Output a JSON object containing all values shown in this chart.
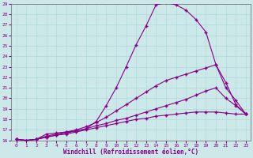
{
  "xlabel": "Windchill (Refroidissement éolien,°C)",
  "background_color": "#cce8e8",
  "line_color": "#880088",
  "xlim": [
    -0.5,
    23.5
  ],
  "ylim": [
    16,
    29
  ],
  "yticks": [
    16,
    17,
    18,
    19,
    20,
    21,
    22,
    23,
    24,
    25,
    26,
    27,
    28,
    29
  ],
  "xticks": [
    0,
    1,
    2,
    3,
    4,
    5,
    6,
    7,
    8,
    9,
    10,
    11,
    12,
    13,
    14,
    15,
    16,
    17,
    18,
    19,
    20,
    21,
    22,
    23
  ],
  "curves": [
    {
      "x": [
        0,
        1,
        2,
        3,
        4,
        5,
        6,
        7,
        8,
        9,
        10,
        11,
        12,
        13,
        14,
        15,
        16,
        17,
        18,
        19,
        20,
        21,
        22,
        23
      ],
      "y": [
        16.1,
        16.0,
        16.1,
        16.6,
        16.7,
        16.8,
        16.9,
        17.1,
        17.8,
        19.3,
        21.0,
        23.0,
        25.1,
        26.9,
        28.9,
        29.1,
        28.9,
        28.4,
        27.5,
        26.3,
        23.2,
        21.5,
        19.4,
        18.5
      ]
    },
    {
      "x": [
        0,
        1,
        2,
        3,
        4,
        5,
        6,
        7,
        8,
        9,
        10,
        11,
        12,
        13,
        14,
        15,
        16,
        17,
        18,
        19,
        20,
        21,
        22,
        23
      ],
      "y": [
        16.1,
        16.0,
        16.1,
        16.4,
        16.6,
        16.8,
        17.0,
        17.3,
        17.7,
        18.2,
        18.8,
        19.4,
        20.0,
        20.6,
        21.2,
        21.7,
        22.0,
        22.3,
        22.6,
        22.9,
        23.2,
        21.0,
        19.8,
        18.5
      ]
    },
    {
      "x": [
        0,
        1,
        2,
        3,
        4,
        5,
        6,
        7,
        8,
        9,
        10,
        11,
        12,
        13,
        14,
        15,
        16,
        17,
        18,
        19,
        20,
        21,
        22,
        23
      ],
      "y": [
        16.1,
        16.0,
        16.1,
        16.3,
        16.5,
        16.7,
        16.9,
        17.1,
        17.4,
        17.6,
        17.9,
        18.1,
        18.4,
        18.7,
        19.0,
        19.3,
        19.6,
        19.9,
        20.3,
        20.7,
        21.0,
        20.0,
        19.3,
        18.5
      ]
    },
    {
      "x": [
        0,
        1,
        2,
        3,
        4,
        5,
        6,
        7,
        8,
        9,
        10,
        11,
        12,
        13,
        14,
        15,
        16,
        17,
        18,
        19,
        20,
        21,
        22,
        23
      ],
      "y": [
        16.1,
        16.0,
        16.1,
        16.3,
        16.5,
        16.6,
        16.8,
        17.0,
        17.2,
        17.4,
        17.6,
        17.8,
        18.0,
        18.1,
        18.3,
        18.4,
        18.5,
        18.6,
        18.7,
        18.7,
        18.7,
        18.6,
        18.5,
        18.5
      ]
    }
  ],
  "marker": "+",
  "markersize": 3,
  "linewidth": 0.8,
  "tick_fontsize": 4.5,
  "xlabel_fontsize": 5.5,
  "grid_color": "#a8d8d8",
  "grid_linewidth": 0.4
}
